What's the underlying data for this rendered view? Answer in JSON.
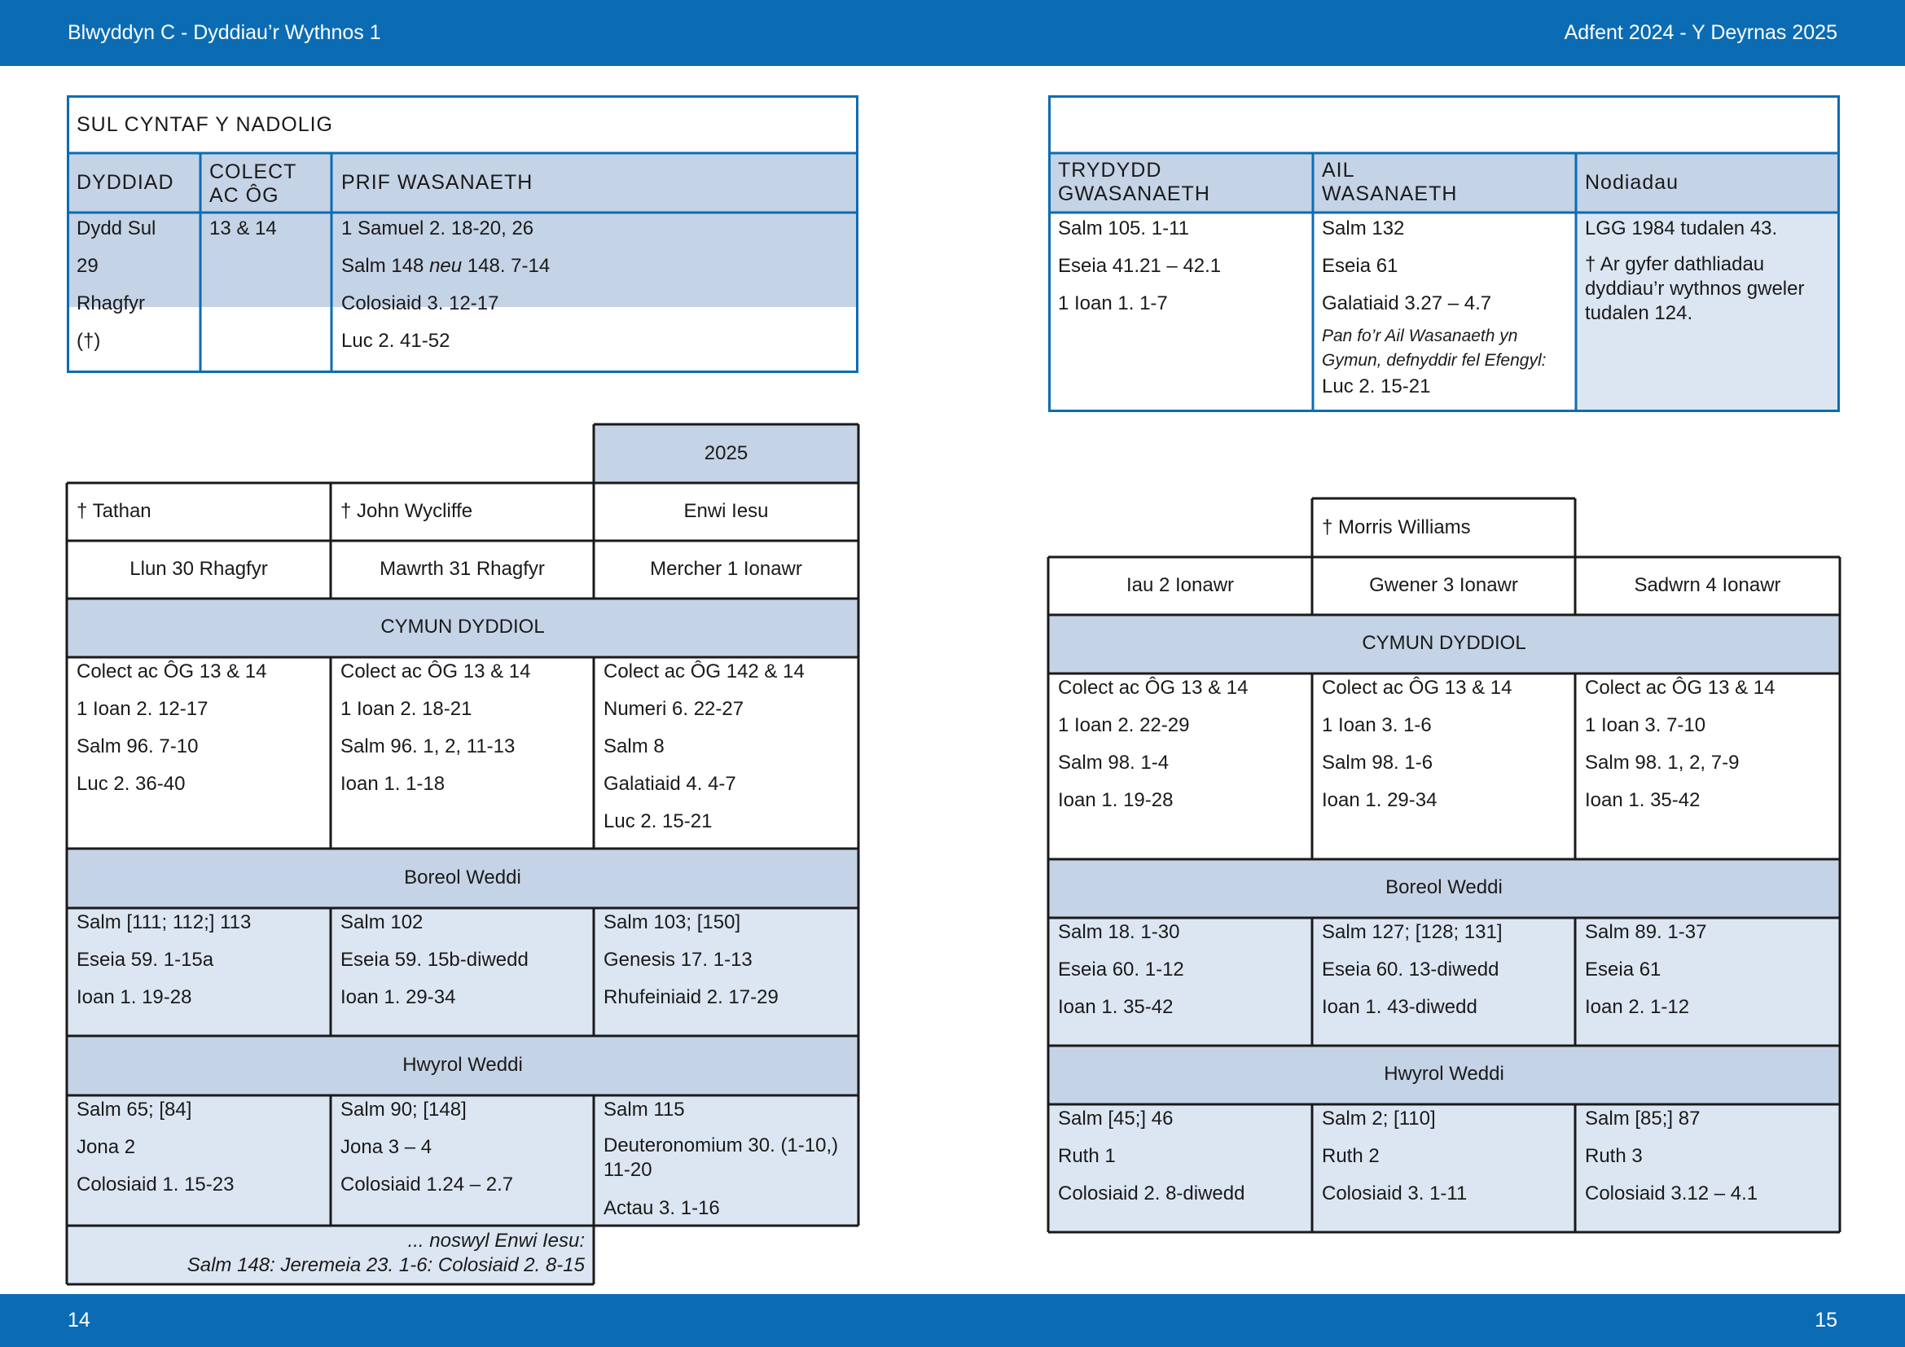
{
  "header": {
    "left": "Blwyddyn  C - Dyddiau’r Wythnos 1",
    "right": "Adfent  2024 - Y Deyrnas 2025"
  },
  "footer": {
    "left_page": "14",
    "right_page": "15"
  },
  "sunday": {
    "title": "SUL CYNTAF Y NADOLIG",
    "headers": [
      "DYDDIAD",
      "COLECT AC ÔG",
      "PRIF WASANAETH",
      "TRYDYDD GWASANAETH",
      "AIL WASANAETH",
      "Nodiadau"
    ],
    "date": [
      "Dydd Sul",
      "29",
      "Rhagfyr",
      "(†)"
    ],
    "collect": "13 & 14",
    "principal": {
      "line1": "1 Samuel 2. 18-20, 26",
      "line2_a": "Salm 148 ",
      "line2_neu": "neu",
      "line2_b": " 148. 7-14",
      "line3": "Colosiaid 3. 12-17",
      "line4": "Luc 2. 41-52"
    },
    "third": [
      "Salm 105. 1-11",
      "Eseia 41.21 – 42.1",
      "1 Ioan 1. 1-7"
    ],
    "second": [
      "Salm 132",
      "Eseia 61",
      "Galatiaid 3.27 – 4.7"
    ],
    "second_note": "Pan fo’r Ail Wasanaeth yn Gymun, defnyddir fel Efengyl:",
    "second_note_reading": "Luc 2. 15-21",
    "notes": [
      "LGG 1984 tudalen 43.",
      "† Ar gyfer dathliadau dyddiau’r wythnos gweler tudalen 124."
    ]
  },
  "left_week": {
    "year": "2025",
    "commemorations": [
      "† Tathan",
      "† John Wycliffe",
      "Enwi Iesu"
    ],
    "dates": [
      "Llun 30 Rhagfyr",
      "Mawrth 31 Rhagfyr",
      "Mercher 1 Ionawr"
    ],
    "communion_title": "CYMUN DYDDIOL",
    "communion": [
      [
        "Colect ac ÔG 13 & 14",
        "1 Ioan 2. 12-17",
        "Salm 96. 7-10",
        "Luc 2. 36-40"
      ],
      [
        "Colect ac ÔG 13 & 14",
        "1 Ioan 2. 18-21",
        "Salm 96. 1, 2, 11-13",
        "Ioan 1. 1-18"
      ],
      [
        "Colect ac ÔG 142 & 14",
        "Numeri 6. 22-27",
        "Salm 8",
        "Galatiaid 4. 4-7",
        "Luc 2. 15-21"
      ]
    ],
    "morning_title": "Boreol Weddi",
    "morning": [
      [
        "Salm [111; 112;] 113",
        "Eseia 59. 1-15a",
        "Ioan 1. 19-28"
      ],
      [
        "Salm 102",
        "Eseia 59. 15b-diwedd",
        "Ioan 1. 29-34"
      ],
      [
        "Salm 103; [150]",
        "Genesis 17. 1-13",
        "Rhufeiniaid 2. 17-29"
      ]
    ],
    "evening_title": "Hwyrol Weddi",
    "evening": [
      [
        "Salm 65; [84]",
        "Jona 2",
        "Colosiaid 1. 15-23"
      ],
      [
        "Salm 90; [148]",
        "Jona 3 – 4",
        "Colosiaid 1.24 – 2.7"
      ],
      [
        "Salm 115",
        "Deuteronomium 30. (1-10,) 11-20",
        "Actau 3. 1-16"
      ]
    ],
    "eve_note": [
      "... noswyl Enwi Iesu:",
      "Salm 148: Jeremeia 23. 1-6: Colosiaid 2. 8-15"
    ]
  },
  "right_week": {
    "commemoration": "† Morris Williams",
    "dates": [
      "Iau 2 Ionawr",
      "Gwener 3 Ionawr",
      "Sadwrn 4 Ionawr"
    ],
    "communion_title": "CYMUN DYDDIOL",
    "communion": [
      [
        "Colect ac ÔG 13 & 14",
        "1 Ioan 2. 22-29",
        "Salm 98. 1-4",
        "Ioan 1. 19-28"
      ],
      [
        "Colect ac ÔG 13 & 14",
        "1 Ioan 3. 1-6",
        "Salm 98. 1-6",
        "Ioan 1. 29-34"
      ],
      [
        "Colect ac ÔG 13 & 14",
        "1 Ioan 3. 7-10",
        "Salm 98. 1, 2, 7-9",
        "Ioan 1. 35-42"
      ]
    ],
    "morning_title": "Boreol Weddi",
    "morning": [
      [
        "Salm 18. 1-30",
        "Eseia 60. 1-12",
        "Ioan 1. 35-42"
      ],
      [
        "Salm 127; [128; 131]",
        "Eseia 60. 13-diwedd",
        "Ioan 1. 43-diwedd"
      ],
      [
        "Salm 89. 1-37",
        "Eseia 61",
        "Ioan 2. 1-12"
      ]
    ],
    "evening_title": "Hwyrol Weddi",
    "evening": [
      [
        "Salm [45;] 46",
        "Ruth 1",
        "Colosiaid 2. 8-diwedd"
      ],
      [
        "Salm 2; [110]",
        "Ruth 2",
        "Colosiaid 3. 1-11"
      ],
      [
        "Salm [85;] 87",
        "Ruth 3",
        "Colosiaid 3.12 – 4.1"
      ]
    ]
  },
  "colors": {
    "brand_blue": "#0b6cb4",
    "header_fill": "#c5d3e6",
    "light_fill": "#dce6f2",
    "grid_line": "#1a1a1a"
  }
}
